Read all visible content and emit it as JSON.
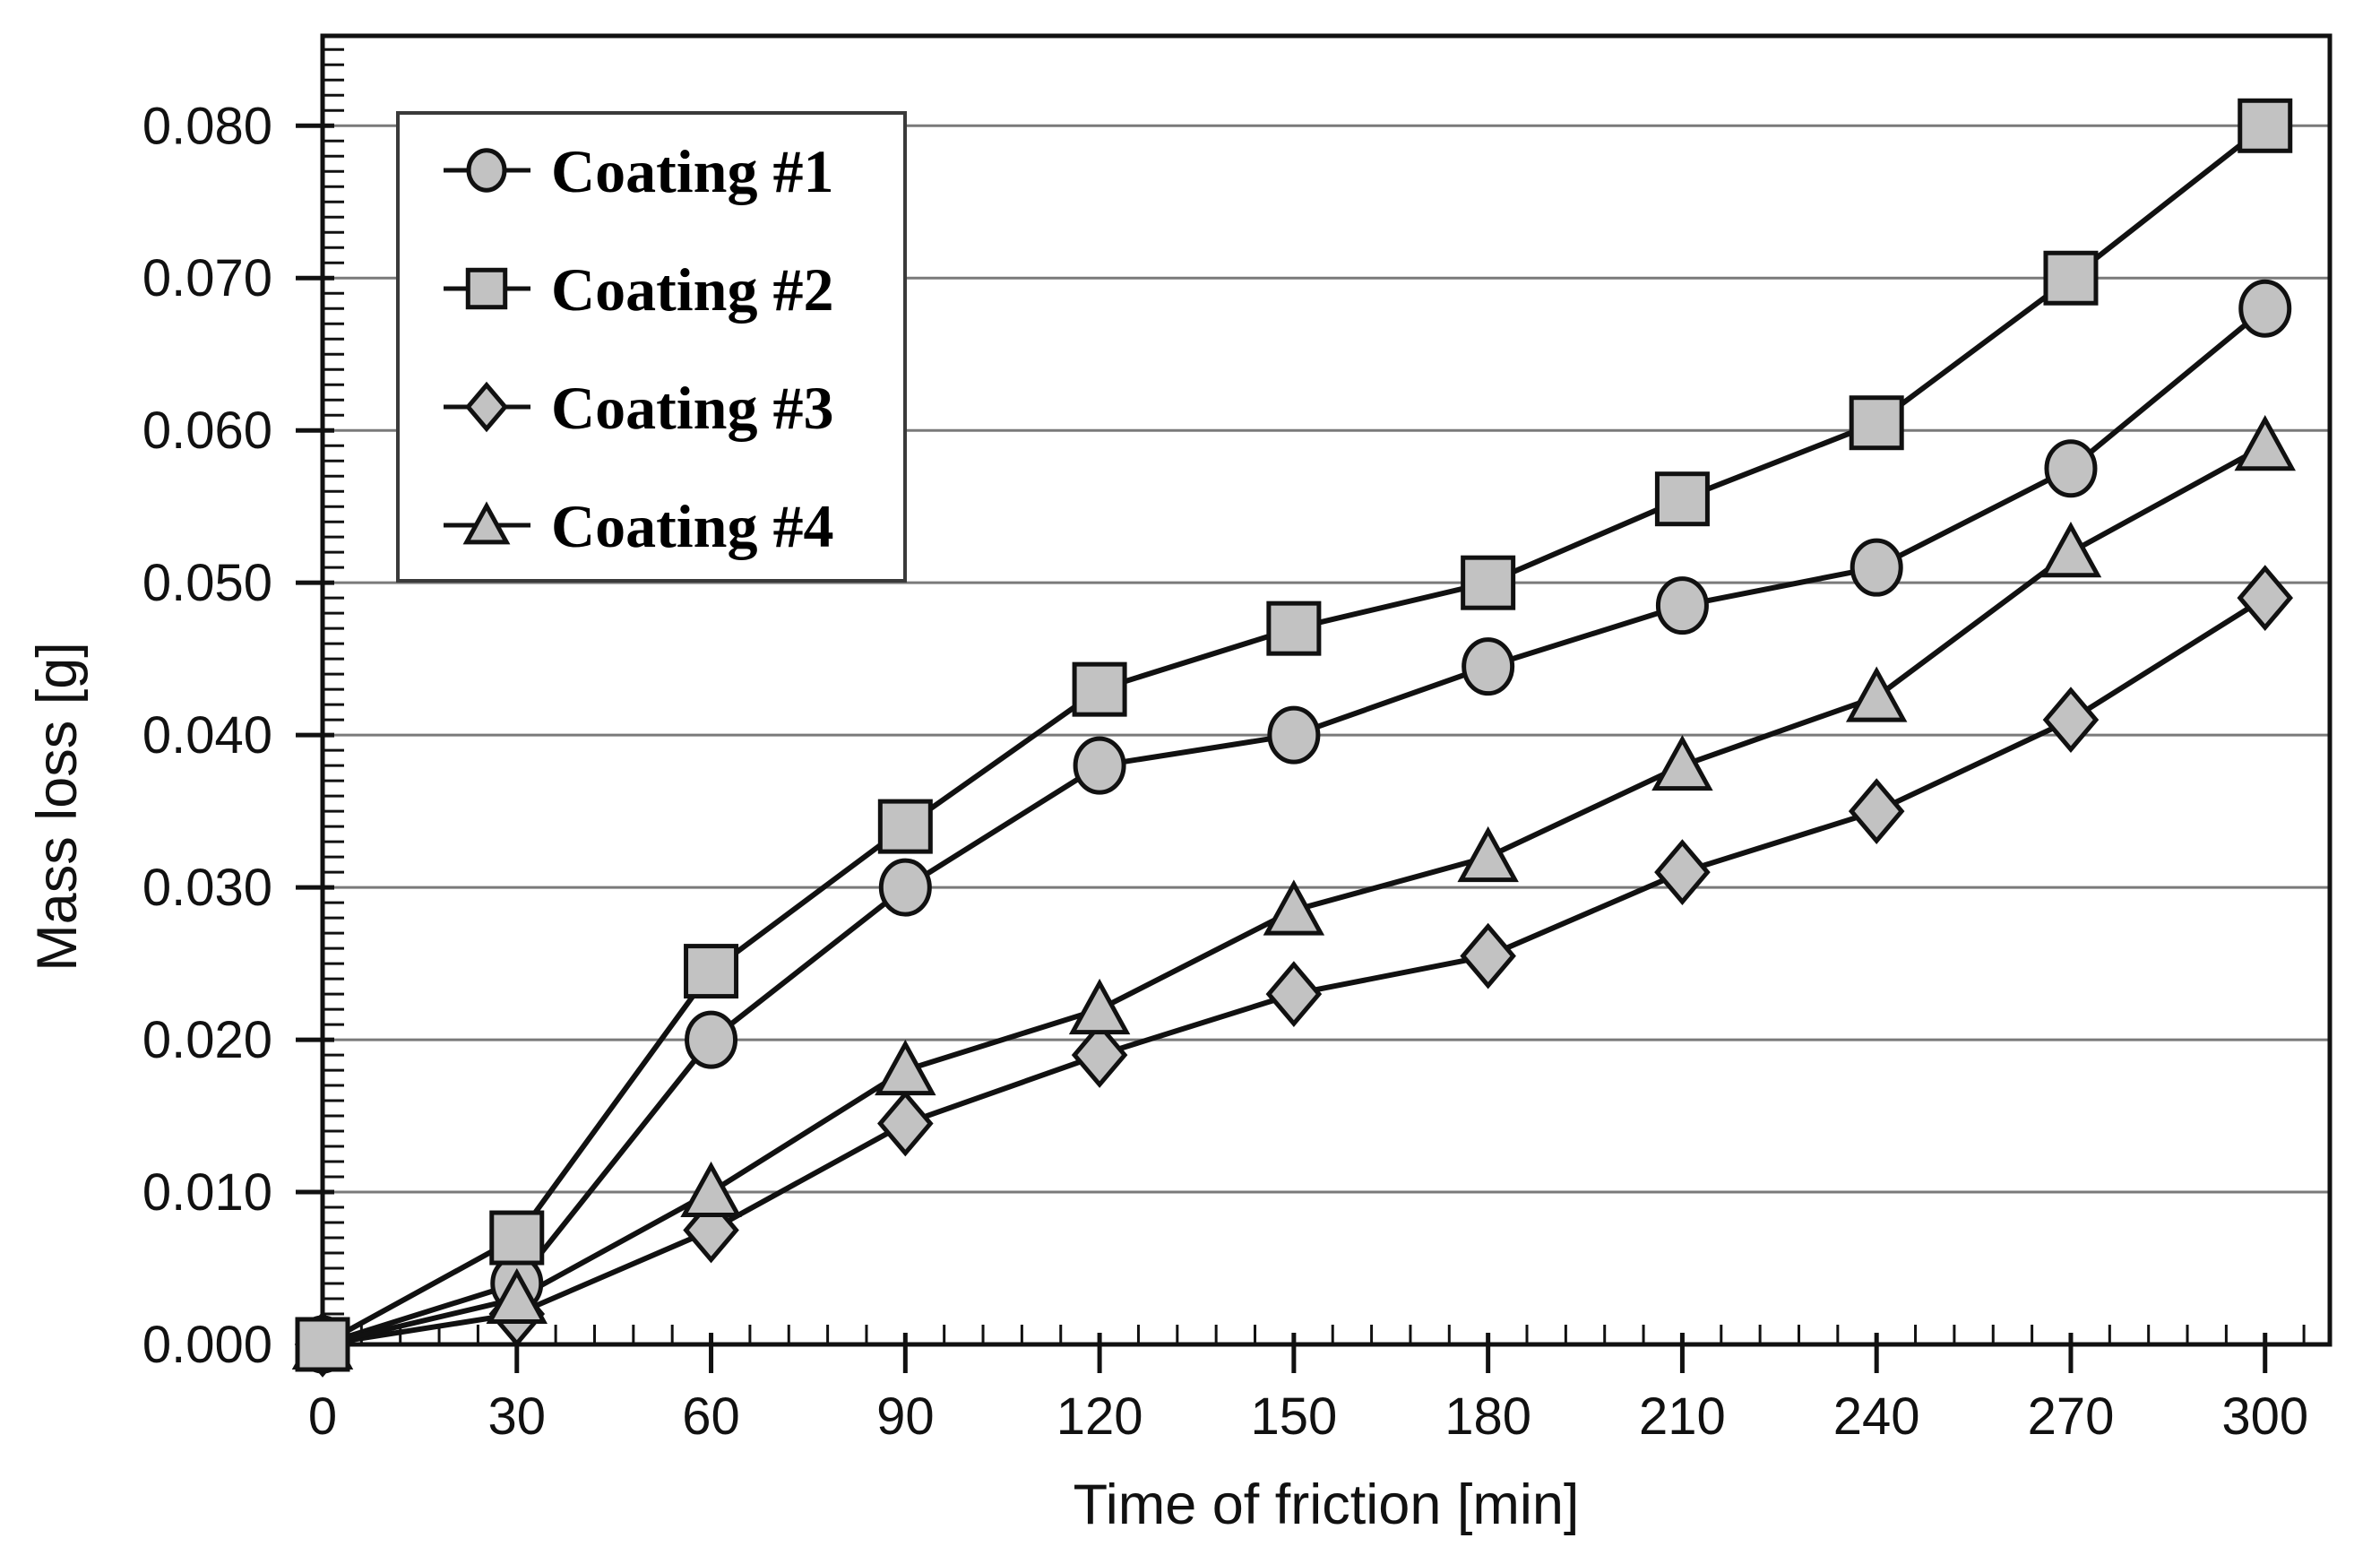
{
  "chart_data": {
    "type": "line",
    "title": "",
    "xlabel": "Time of friction [min]",
    "ylabel": "Mass loss [g]",
    "x": [
      0,
      30,
      60,
      90,
      120,
      150,
      180,
      210,
      240,
      270,
      300
    ],
    "series": [
      {
        "name": "Coating #1",
        "marker": "circle",
        "values": [
          0.0,
          0.004,
          0.02,
          0.03,
          0.038,
          0.04,
          0.0445,
          0.0485,
          0.051,
          0.0575,
          0.068
        ]
      },
      {
        "name": "Coating #2",
        "marker": "square",
        "values": [
          0.0,
          0.007,
          0.0245,
          0.034,
          0.043,
          0.047,
          0.05,
          0.0555,
          0.0605,
          0.07,
          0.08
        ]
      },
      {
        "name": "Coating #3",
        "marker": "diamond",
        "values": [
          0.0,
          0.002,
          0.0075,
          0.0145,
          0.019,
          0.023,
          0.0255,
          0.031,
          0.035,
          0.041,
          0.049
        ]
      },
      {
        "name": "Coating #4",
        "marker": "triangle",
        "values": [
          0.0,
          0.003,
          0.01,
          0.018,
          0.022,
          0.0285,
          0.032,
          0.038,
          0.0425,
          0.052,
          0.059
        ]
      }
    ],
    "xlim": [
      0,
      310
    ],
    "ylim": [
      0,
      0.0859
    ],
    "x_major_ticks": [
      0,
      30,
      60,
      90,
      120,
      150,
      180,
      210,
      240,
      270,
      300
    ],
    "x_tick_labels": [
      "0",
      "30",
      "60",
      "90",
      "120",
      "150",
      "180",
      "210",
      "240",
      "270",
      "300"
    ],
    "y_major_ticks": [
      0.0,
      0.01,
      0.02,
      0.03,
      0.04,
      0.05,
      0.06,
      0.07,
      0.08
    ],
    "y_tick_labels": [
      "0.000",
      "0.010",
      "0.020",
      "0.030",
      "0.040",
      "0.050",
      "0.060",
      "0.070",
      "0.080"
    ],
    "x_minor_step": 6,
    "y_minor_step": 0.001,
    "grid": "horizontal-major-only",
    "legend_position": "upper-left",
    "colors": {
      "background": "#ffffff",
      "line": "#111111",
      "marker_fill": "#c2c2c2",
      "marker_stroke": "#111111",
      "grid": "#7a7a7a",
      "axis": "#111111",
      "legend_border": "#3a3a3a",
      "legend_fill": "#ffffff",
      "text": "#111111"
    }
  }
}
